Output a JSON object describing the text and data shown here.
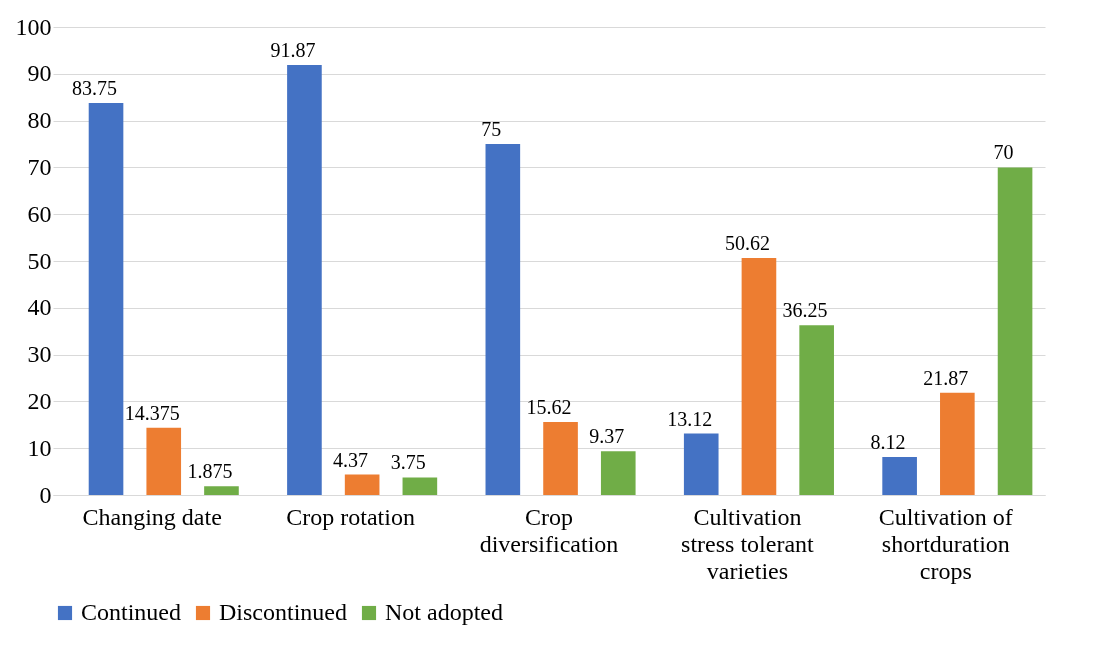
{
  "chart_data": {
    "type": "bar",
    "categories": [
      "Changing date",
      "Crop rotation",
      "Crop diversification",
      "Cultivation stress tolerant varieties",
      "Cultivation of shortduration crops"
    ],
    "series": [
      {
        "name": "Continued",
        "color": "#4472c4",
        "values": [
          83.75,
          91.87,
          75,
          13.12,
          8.12
        ]
      },
      {
        "name": "Discontinued",
        "color": "#ed7d31",
        "values": [
          14.375,
          4.37,
          15.62,
          50.62,
          21.87
        ]
      },
      {
        "name": "Not adopted",
        "color": "#70ad47",
        "values": [
          1.875,
          3.75,
          9.37,
          36.25,
          70
        ]
      }
    ],
    "ylim": [
      0,
      100
    ],
    "yticks": [
      0,
      10,
      20,
      30,
      40,
      50,
      60,
      70,
      80,
      90,
      100
    ],
    "grid": "y",
    "legend": "bottom",
    "data_labels": true
  }
}
